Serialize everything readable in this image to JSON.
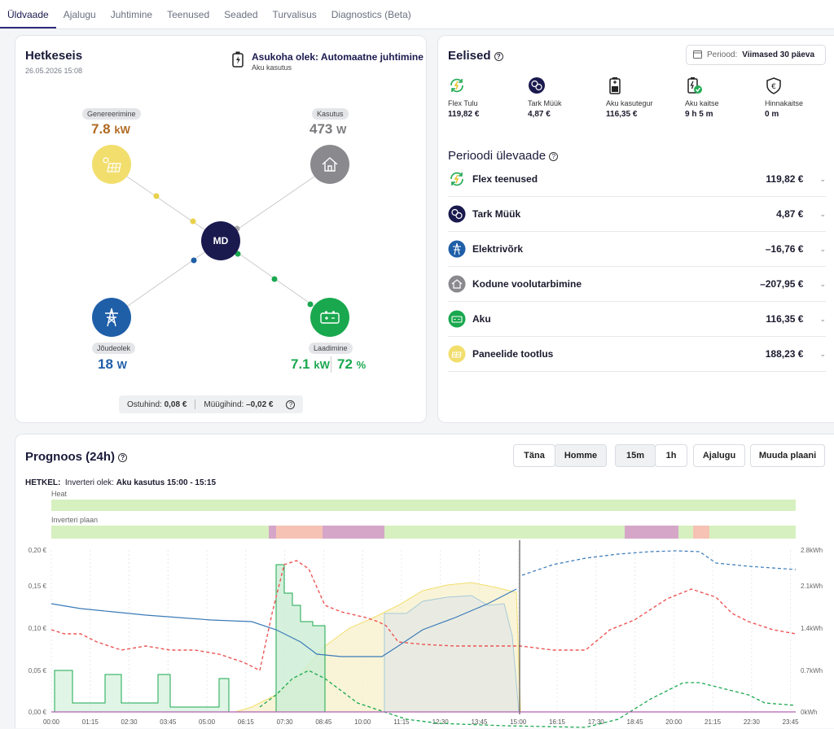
{
  "tabs": [
    "Üldvaade",
    "Ajalugu",
    "Juhtimine",
    "Teenused",
    "Seaded",
    "Turvalisus",
    "Diagnostics (Beta)"
  ],
  "now": {
    "title": "Hetkeseis",
    "date": "26.05.2026 15:08",
    "location_state": "Asukoha olek: Automaatne juhtimine",
    "location_sub": "Aku kasutus",
    "center": "MD",
    "gen_label": "Genereerimine",
    "gen_value": "7.8",
    "gen_unit": "kW",
    "use_label": "Kasutus",
    "use_value": "473",
    "use_unit": "W",
    "grid_label": "Jõudeolek",
    "grid_value": "18",
    "grid_unit": "W",
    "bat_label": "Laadimine",
    "bat_value": "7.1",
    "bat_unit": "kW",
    "bat_soc": "72",
    "bat_soc_unit": "%",
    "buy_label": "Ostuhind:",
    "buy_value": "0,08 €",
    "sell_label": "Müügihind:",
    "sell_value": "–0,02 €"
  },
  "benefits": {
    "title": "Eelised",
    "period_label": "Periood:",
    "period_value": "Viimased 30 päeva",
    "kpis": [
      {
        "label": "Flex Tulu",
        "value": "119,82 €",
        "icon": "flex-icon"
      },
      {
        "label": "Tark Müük",
        "value": "4,87 €",
        "icon": "smart-sell-icon"
      },
      {
        "label": "Aku kasutegur",
        "value": "116,35 €",
        "icon": "battery-icon"
      },
      {
        "label": "Aku kaitse",
        "value": "9 h 5 m",
        "icon": "battery-protect-icon"
      },
      {
        "label": "Hinnakaitse",
        "value": "0 m",
        "icon": "price-shield-icon"
      }
    ],
    "overview_title": "Perioodi ülevaade",
    "rows": [
      {
        "name": "Flex teenused",
        "amount": "119,82 €",
        "color": "#22aa55"
      },
      {
        "name": "Tark Müük",
        "amount": "4,87 €",
        "color": "#1b1a4f"
      },
      {
        "name": "Elektrivõrk",
        "amount": "–16,76 €",
        "color": "#1f5fa8"
      },
      {
        "name": "Kodune voolutarbimine",
        "amount": "–207,95 €",
        "color": "#8a8a8e"
      },
      {
        "name": "Aku",
        "amount": "116,35 €",
        "color": "#1aa84f"
      },
      {
        "name": "Paneelide tootlus",
        "amount": "188,23 €",
        "color": "#f2de6d"
      }
    ]
  },
  "forecast": {
    "title": "Prognoos (24h)",
    "buttons": [
      "Täna",
      "Homme",
      "15m",
      "1h",
      "Ajalugu",
      "Muuda plaani"
    ],
    "now_label": "HETKEL:",
    "inverter_label": "Inverteri olek:",
    "inverter_value": "Aku kasutus 15:00 - 15:15",
    "heat_label": "Heat",
    "plan_label": "Inverteri plaan",
    "y_left": [
      "0,20 €",
      "0,15 €",
      "0,10 €",
      "0,05 €",
      "0,00 €"
    ],
    "y_right": [
      "2.8kWh",
      "2.1kWh",
      "1.4kWh",
      "0.7kWh",
      "0kWh"
    ],
    "x_ticks": [
      "00:00",
      "01:15",
      "02:30",
      "03:45",
      "05:00",
      "06:15",
      "07:30",
      "08:45",
      "10:00",
      "11:15",
      "12:30",
      "13:45",
      "15:00",
      "16:15",
      "17:30",
      "18:45",
      "20:00",
      "21:15",
      "22:30",
      "23:45"
    ]
  },
  "colors": {
    "accent": "#2e2b7a",
    "solar": "#f2de6d",
    "grid": "#1f5fa8",
    "battery": "#1aa84f",
    "home": "#8a8a8e",
    "price": "#e55"
  }
}
